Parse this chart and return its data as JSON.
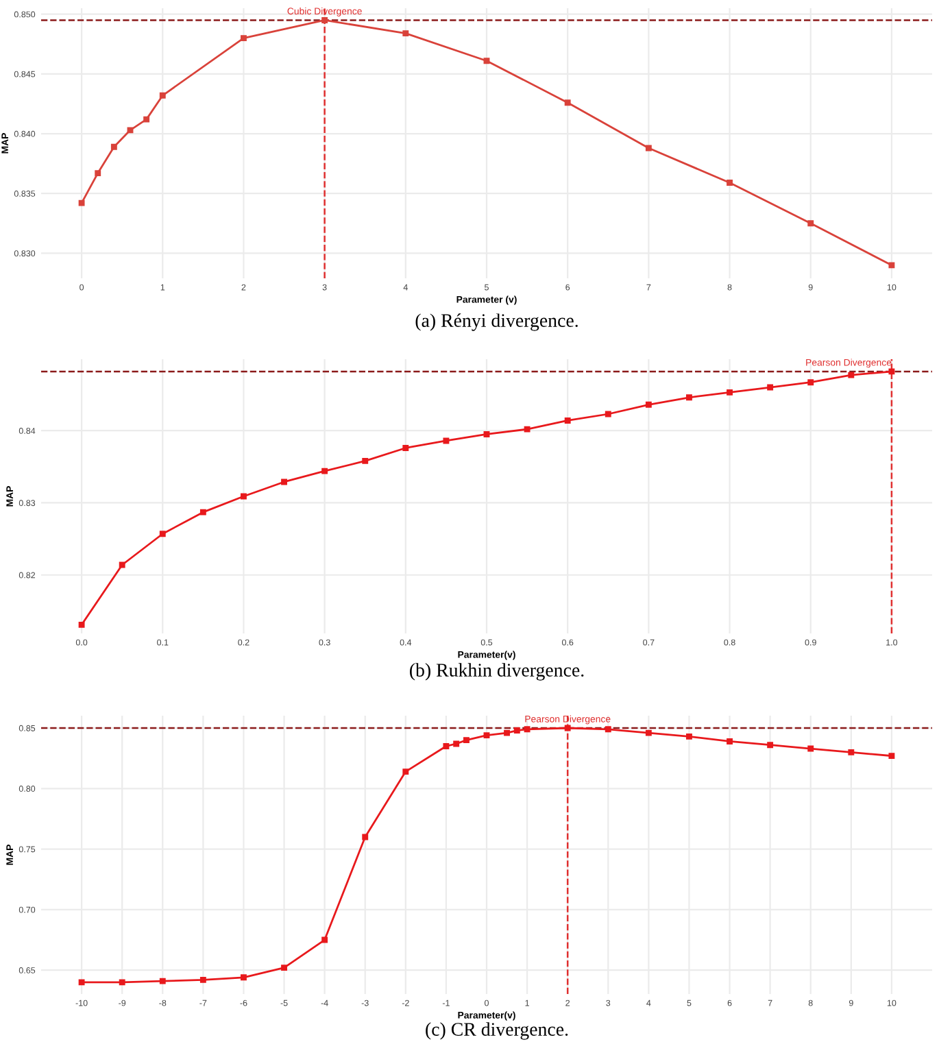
{
  "chart_data": [
    {
      "type": "line",
      "xlabel": "Parameter (v)",
      "ylabel": "MAP",
      "x": [
        0,
        0.2,
        0.4,
        0.6,
        0.8,
        1,
        2,
        3,
        4,
        5,
        6,
        7,
        8,
        9,
        10
      ],
      "series": [
        {
          "color": "#d9423a",
          "values": [
            0.8342,
            0.8367,
            0.8389,
            0.8403,
            0.8412,
            0.8432,
            0.848,
            0.8495,
            0.8484,
            0.8461,
            0.8426,
            0.8388,
            0.8359,
            0.8325,
            0.829
          ]
        }
      ],
      "xlim": [
        -0.5,
        10.5
      ],
      "ylim": [
        0.8279,
        0.8505
      ],
      "xticks": [
        0,
        1,
        2,
        3,
        4,
        5,
        6,
        7,
        8,
        9,
        10
      ],
      "yticks": [
        {
          "value": 0.83,
          "label": "0.830"
        },
        {
          "value": 0.835,
          "label": "0.835"
        },
        {
          "value": 0.84,
          "label": "0.840"
        },
        {
          "value": 0.845,
          "label": "0.845"
        },
        {
          "value": 0.85,
          "label": "0.850"
        }
      ],
      "ref_lines": [
        {
          "axis": "y",
          "value": 0.8495,
          "color": "#8b1a1a",
          "line_style": "dashed"
        },
        {
          "axis": "x",
          "value": 3,
          "color": "#e03030",
          "line_style": "dashed"
        }
      ],
      "annotations": [
        {
          "text": "Cubic Divergence",
          "x": 3,
          "y": 0.8495
        },
        "(a) Rényi divergence."
      ],
      "grid": true,
      "marker": "square",
      "line_style": "solid",
      "legend": false
    },
    {
      "type": "line",
      "xlabel": "Parameter(v)",
      "ylabel": "MAP",
      "x": [
        0,
        0.05,
        0.1,
        0.15,
        0.2,
        0.25,
        0.3,
        0.35,
        0.4,
        0.45,
        0.5,
        0.55,
        0.6,
        0.65,
        0.7,
        0.75,
        0.8,
        0.85,
        0.9,
        0.95,
        1.0
      ],
      "series": [
        {
          "color": "#e8191c",
          "values": [
            0.8131,
            0.8214,
            0.8257,
            0.8287,
            0.8309,
            0.8329,
            0.8344,
            0.8358,
            0.8376,
            0.8386,
            0.8395,
            0.8402,
            0.8414,
            0.8423,
            0.8436,
            0.8446,
            0.8453,
            0.846,
            0.8467,
            0.8477,
            0.8482
          ]
        }
      ],
      "xlim": [
        -0.05,
        1.05
      ],
      "ylim": [
        0.8119,
        0.8499
      ],
      "xticks": [
        {
          "value": 0,
          "label": "0.0"
        },
        0.1,
        0.2,
        0.3,
        0.4,
        0.5,
        0.6,
        0.7,
        0.8,
        0.9,
        {
          "value": 1,
          "label": "1.0"
        }
      ],
      "yticks": [
        0.82,
        0.83,
        0.84
      ],
      "ref_lines": [
        {
          "axis": "y",
          "value": 0.8482,
          "color": "#8b1a1a",
          "line_style": "dashed"
        },
        {
          "axis": "x",
          "value": 1.0,
          "color": "#e03030",
          "line_style": "dashed"
        }
      ],
      "annotations": [
        {
          "text": "Pearson Divergence",
          "x": 1.0,
          "y": 0.8482
        },
        "(b) Rukhin divergence."
      ],
      "grid": true,
      "marker": "square",
      "line_style": "solid",
      "legend": false
    },
    {
      "type": "line",
      "xlabel": "Parameter(v)",
      "ylabel": "MAP",
      "x": [
        -10,
        -9,
        -8,
        -7,
        -6,
        -5,
        -4,
        -3,
        -2,
        -1,
        -0.75,
        -0.5,
        0,
        0.5,
        0.75,
        1,
        2,
        3,
        4,
        5,
        6,
        7,
        8,
        9,
        10
      ],
      "series": [
        {
          "color": "#e8191c",
          "values": [
            0.64,
            0.64,
            0.641,
            0.642,
            0.644,
            0.652,
            0.675,
            0.76,
            0.814,
            0.835,
            0.837,
            0.84,
            0.844,
            0.846,
            0.848,
            0.849,
            0.85,
            0.849,
            0.846,
            0.843,
            0.839,
            0.836,
            0.833,
            0.83,
            0.827
          ]
        }
      ],
      "xlim": [
        -11,
        11
      ],
      "ylim": [
        0.6303,
        0.8602
      ],
      "xticks": [
        -10,
        -9,
        -8,
        -7,
        -6,
        -5,
        -4,
        -3,
        -2,
        -1,
        0,
        1,
        2,
        3,
        4,
        5,
        6,
        7,
        8,
        9,
        10
      ],
      "yticks": [
        0.65,
        {
          "value": 0.7,
          "label": "0.70"
        },
        0.75,
        {
          "value": 0.8,
          "label": "0.80"
        },
        0.85
      ],
      "ref_lines": [
        {
          "axis": "y",
          "value": 0.85,
          "color": "#8b1a1a",
          "line_style": "dashed"
        },
        {
          "axis": "x",
          "value": 2,
          "color": "#e03030",
          "line_style": "dashed"
        }
      ],
      "annotations": [
        {
          "text": "Pearson Divergence",
          "x": 2,
          "y": 0.85
        },
        "(c) CR divergence."
      ],
      "grid": true,
      "marker": "square",
      "line_style": "solid",
      "legend": false
    }
  ]
}
